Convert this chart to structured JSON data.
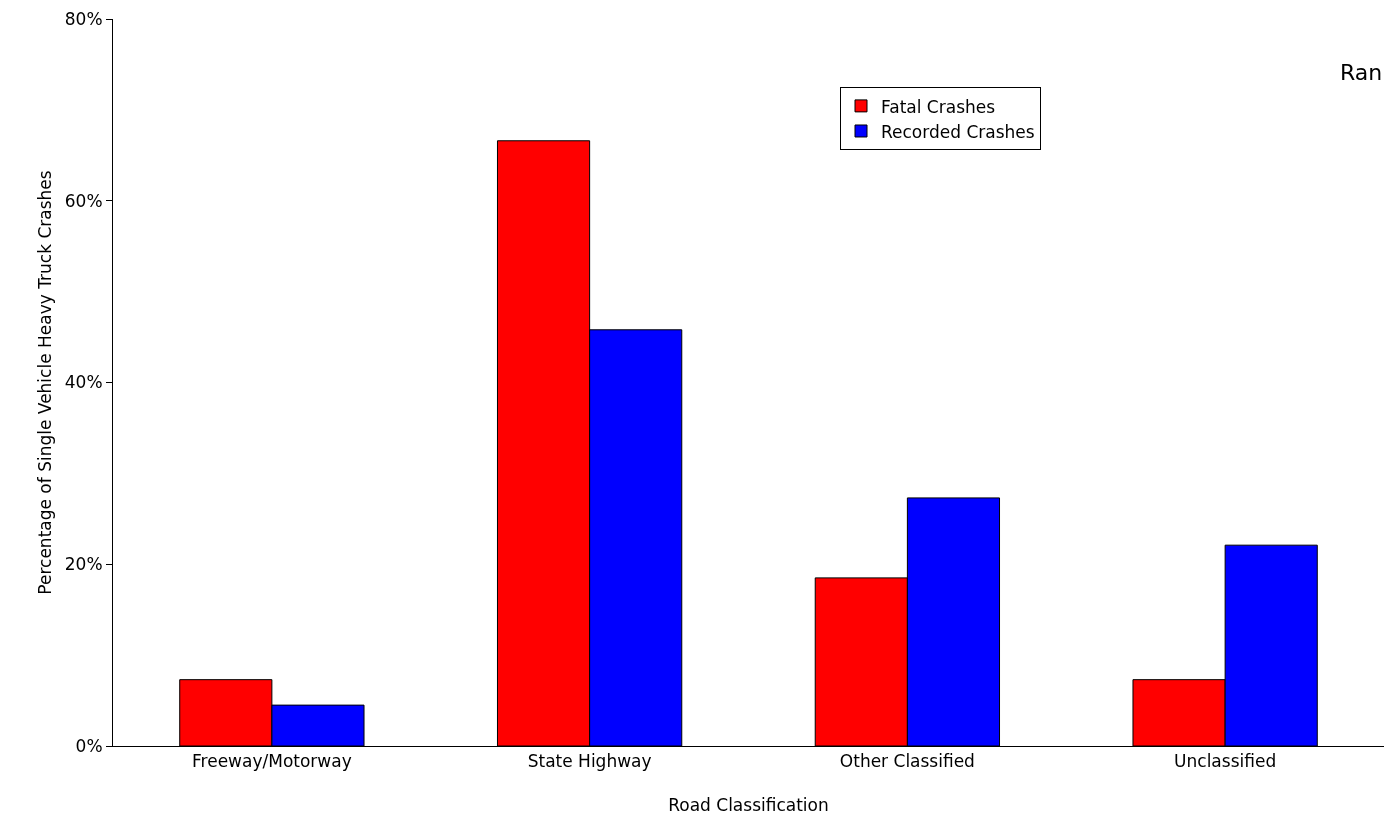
{
  "chart_data": {
    "type": "bar",
    "xlabel": "Road Classification",
    "ylabel": "Percentage of Single Vehicle Heavy Truck Crashes",
    "categories": [
      "Freeway/Motorway",
      "State Highway",
      "Other Classified",
      "Unclassified"
    ],
    "series": [
      {
        "name": "Fatal Crashes",
        "color": "#ff0000",
        "values": [
          7.3,
          66.6,
          18.5,
          7.3
        ]
      },
      {
        "name": "Recorded Crashes",
        "color": "#0000ff",
        "values": [
          4.5,
          45.8,
          27.3,
          22.1
        ]
      }
    ],
    "ylim": [
      0,
      80
    ],
    "yticks": [
      {
        "value": 0,
        "label": "0%"
      },
      {
        "value": 20,
        "label": "20%"
      },
      {
        "value": 40,
        "label": "40%"
      },
      {
        "value": 60,
        "label": "60%"
      },
      {
        "value": 80,
        "label": "80%"
      }
    ],
    "grid": false,
    "legend": "top right",
    "annotations": [
      "Ran"
    ]
  }
}
